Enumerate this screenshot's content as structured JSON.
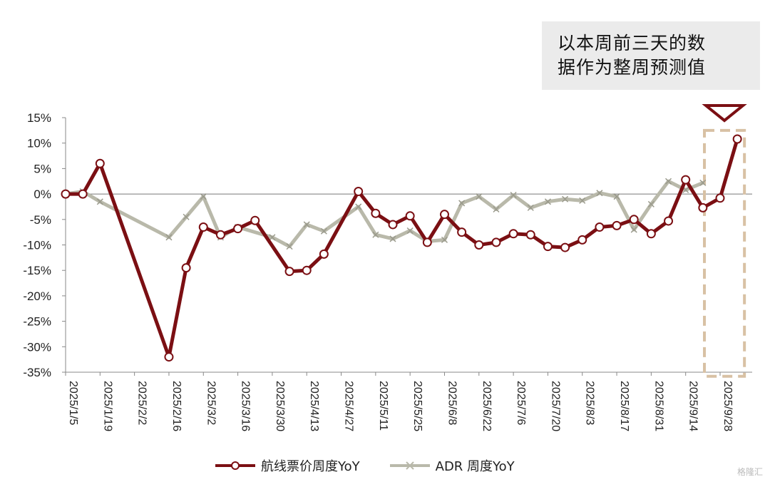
{
  "annotation": {
    "line1": "以本周前三天的数",
    "line2": "据作为整周预测值"
  },
  "watermark": "格隆汇",
  "colors": {
    "fare": "#7b0f13",
    "adr": "#b9b9aa",
    "highlight": "#d8c1a4"
  },
  "chart_data": {
    "type": "line",
    "yticks": [
      "15%",
      "10%",
      "5%",
      "0%",
      "-5%",
      "-10%",
      "-15%",
      "-20%",
      "-25%",
      "-30%",
      "-35%"
    ],
    "ylim": [
      -35,
      15
    ],
    "xticks": [
      "2025/1/5",
      "2025/1/19",
      "2025/2/2",
      "2025/2/16",
      "2025/3/2",
      "2025/3/16",
      "2025/3/30",
      "2025/4/13",
      "2025/4/27",
      "2025/5/11",
      "2025/5/25",
      "2025/6/8",
      "2025/6/22",
      "2025/7/6",
      "2025/7/20",
      "2025/8/3",
      "2025/8/17",
      "2025/8/31",
      "2025/9/14",
      "2025/9/28"
    ],
    "series": [
      {
        "name": "航线票价周度YoY",
        "color": "#7b0f13",
        "marker": "circle",
        "points": [
          [
            "2025/1/5",
            0
          ],
          [
            "2025/1/12",
            0
          ],
          [
            "2025/1/19",
            6
          ],
          [
            "2025/2/16",
            -32
          ],
          [
            "2025/2/23",
            -14.5
          ],
          [
            "2025/3/2",
            -6.5
          ],
          [
            "2025/3/9",
            -8
          ],
          [
            "2025/3/16",
            -6.8
          ],
          [
            "2025/3/23",
            -5.2
          ],
          [
            "2025/4/6",
            -15.2
          ],
          [
            "2025/4/13",
            -15
          ],
          [
            "2025/4/20",
            -11.8
          ],
          [
            "2025/5/4",
            0.5
          ],
          [
            "2025/5/11",
            -3.8
          ],
          [
            "2025/5/18",
            -6
          ],
          [
            "2025/5/25",
            -4.3
          ],
          [
            "2025/6/1",
            -9.5
          ],
          [
            "2025/6/8",
            -4
          ],
          [
            "2025/6/15",
            -7.5
          ],
          [
            "2025/6/22",
            -10
          ],
          [
            "2025/6/29",
            -9.5
          ],
          [
            "2025/7/6",
            -7.8
          ],
          [
            "2025/7/13",
            -8
          ],
          [
            "2025/7/20",
            -10.3
          ],
          [
            "2025/7/27",
            -10.5
          ],
          [
            "2025/8/3",
            -9
          ],
          [
            "2025/8/10",
            -6.5
          ],
          [
            "2025/8/17",
            -6.2
          ],
          [
            "2025/8/24",
            -5
          ],
          [
            "2025/8/31",
            -7.8
          ],
          [
            "2025/9/7",
            -5.3
          ],
          [
            "2025/9/14",
            2.8
          ],
          [
            "2025/9/21",
            -2.7
          ],
          [
            "2025/9/28",
            -0.8
          ],
          [
            "2025/10/5",
            10.8
          ]
        ]
      },
      {
        "name": "ADR 周度YoY",
        "color": "#b9b9aa",
        "marker": "x",
        "points": [
          [
            "2025/1/5",
            0
          ],
          [
            "2025/1/12",
            0.5
          ],
          [
            "2025/1/19",
            -1.5
          ],
          [
            "2025/2/16",
            -8.5
          ],
          [
            "2025/2/23",
            -4.5
          ],
          [
            "2025/3/2",
            -0.5
          ],
          [
            "2025/3/9",
            -8.5
          ],
          [
            "2025/3/16",
            -6.5
          ],
          [
            "2025/3/30",
            -8.5
          ],
          [
            "2025/4/6",
            -10.3
          ],
          [
            "2025/4/13",
            -6
          ],
          [
            "2025/4/20",
            -7.3
          ],
          [
            "2025/5/4",
            -2.5
          ],
          [
            "2025/5/11",
            -8
          ],
          [
            "2025/5/18",
            -8.8
          ],
          [
            "2025/5/25",
            -7.2
          ],
          [
            "2025/6/1",
            -9.3
          ],
          [
            "2025/6/8",
            -9
          ],
          [
            "2025/6/15",
            -1.8
          ],
          [
            "2025/6/22",
            -0.5
          ],
          [
            "2025/6/29",
            -3
          ],
          [
            "2025/7/6",
            -0.2
          ],
          [
            "2025/7/13",
            -2.7
          ],
          [
            "2025/7/20",
            -1.5
          ],
          [
            "2025/7/27",
            -1
          ],
          [
            "2025/8/3",
            -1.3
          ],
          [
            "2025/8/10",
            0.2
          ],
          [
            "2025/8/17",
            -0.5
          ],
          [
            "2025/8/24",
            -7
          ],
          [
            "2025/8/31",
            -2
          ],
          [
            "2025/9/7",
            2.5
          ],
          [
            "2025/9/14",
            0.8
          ],
          [
            "2025/9/21",
            2.2
          ]
        ]
      }
    ],
    "legend_position": "bottom-center"
  }
}
